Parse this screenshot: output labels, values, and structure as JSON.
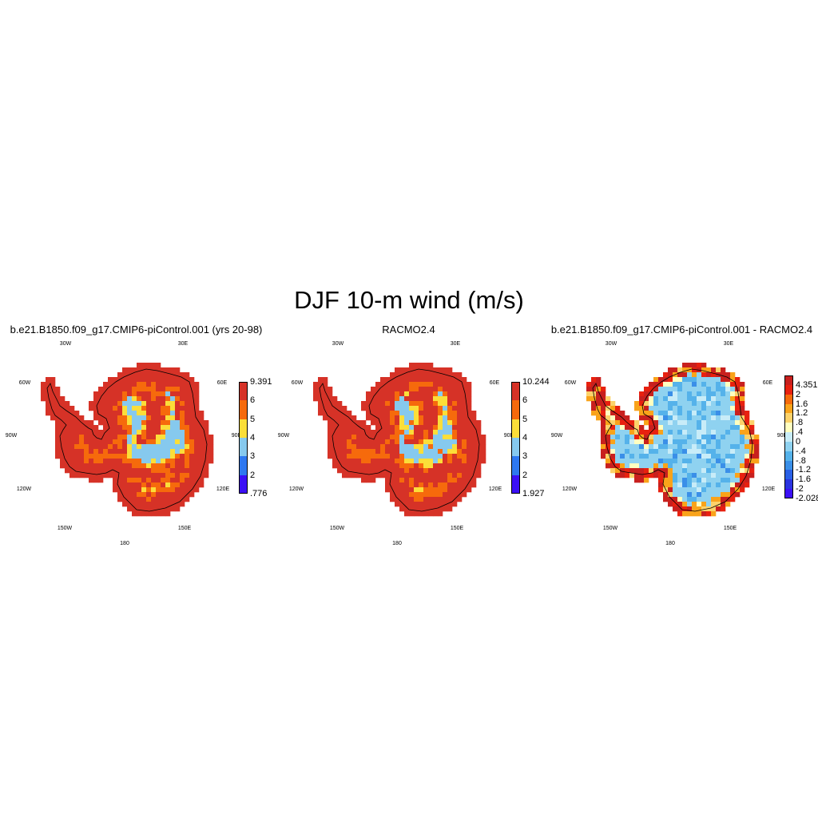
{
  "title": "DJF 10-m wind (m/s)",
  "lon_labels": [
    "30W",
    "30E",
    "60W",
    "60E",
    "90W",
    "90E",
    "120W",
    "120E",
    "150W",
    "150E",
    "180"
  ],
  "panels": [
    {
      "title": "b.e21.B1850.f09_g17.CMIP6-piControl.001 (yrs 20-98)",
      "kind": "model",
      "colorbar": {
        "colors": [
          "#3b10f5",
          "#2e78f0",
          "#86c9ee",
          "#fbde39",
          "#f66a0c",
          "#d63227"
        ],
        "labels": [
          ".776",
          "2",
          "3",
          "4",
          "5",
          "6",
          "9.391"
        ]
      }
    },
    {
      "title": "RACMO2.4",
      "kind": "racmo",
      "colorbar": {
        "colors": [
          "#3b10f5",
          "#2e78f0",
          "#86c9ee",
          "#fbde39",
          "#f66a0c",
          "#d63227"
        ],
        "labels": [
          "1.927",
          "2",
          "3",
          "4",
          "5",
          "6",
          "10.244"
        ]
      }
    },
    {
      "title": "b.e21.B1850.f09_g17.CMIP6-piControl.001 - RACMO2.4",
      "kind": "diff",
      "colorbar": {
        "colors": [
          "#3b10f5",
          "#2a34e0",
          "#2a60e6",
          "#3a8fe8",
          "#55b2ea",
          "#8fd2f0",
          "#c8ecf8",
          "#ffffc0",
          "#fcd26a",
          "#f9a31a",
          "#f56a0a",
          "#e8210f",
          "#c8201e"
        ],
        "labels": [
          "-2.028",
          "-2",
          "-1.6",
          "-1.2",
          "-.8",
          "-.4",
          "0",
          ".4",
          ".8",
          "1.2",
          "1.6",
          "2",
          "4.351"
        ]
      }
    }
  ]
}
